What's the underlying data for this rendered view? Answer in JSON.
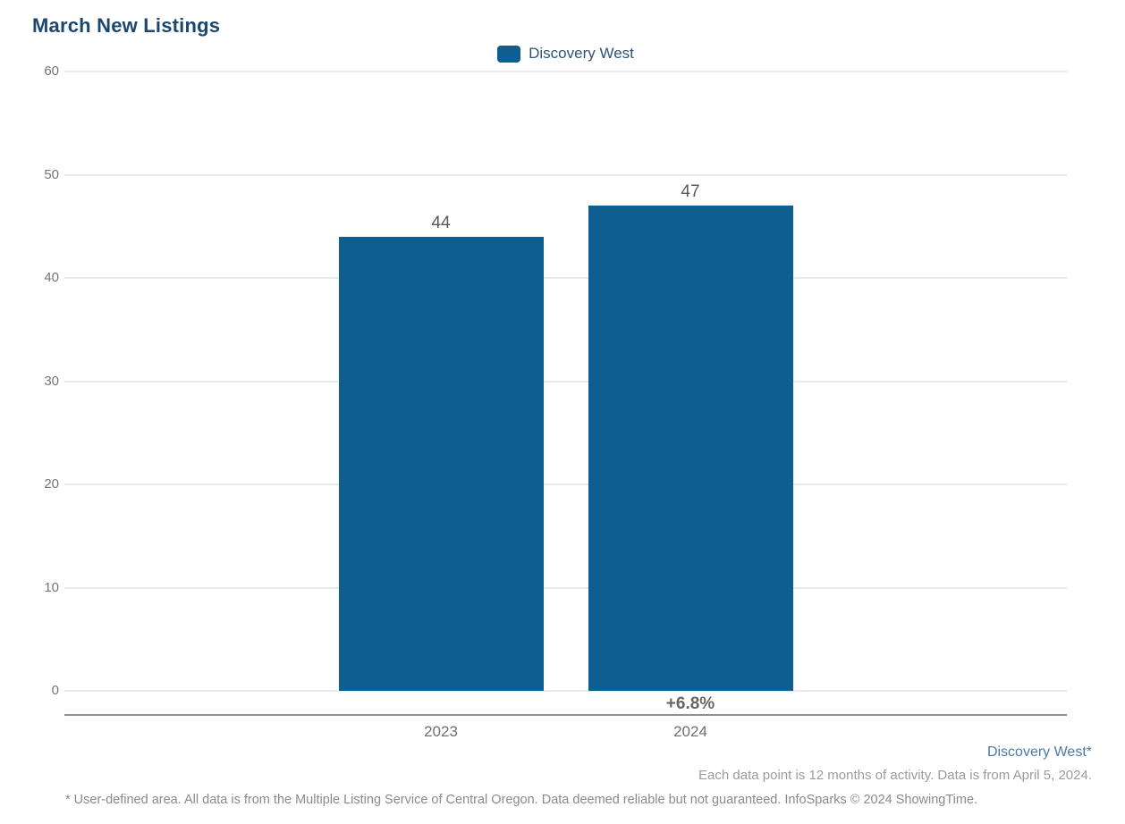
{
  "page": {
    "title": "March New Listings"
  },
  "legend": {
    "label": "Discovery West",
    "swatch_color": "#0F5E92"
  },
  "chart_data": {
    "type": "bar",
    "title": "March New Listings",
    "categories": [
      "2023",
      "2024"
    ],
    "series": [
      {
        "name": "Discovery West",
        "color": "#0F5E92",
        "values": [
          44,
          47
        ]
      }
    ],
    "value_labels": [
      "44",
      "47"
    ],
    "change_labels": [
      "",
      "+6.8%"
    ],
    "xlabel": "",
    "ylabel": "",
    "ylim": [
      0,
      60
    ],
    "yticks": [
      0,
      10,
      20,
      30,
      40,
      50,
      60
    ],
    "grid": "horizontal",
    "legend_position": "top-center"
  },
  "footer": {
    "area_label": "Discovery West*",
    "data_note": "Each data point is 12 months of activity. Data is from April 5, 2024.",
    "disclaimer": "* User-defined area. All data is from the Multiple Listing Service of Central Oregon. Data deemed reliable but not guaranteed. InfoSparks © 2024 ShowingTime."
  },
  "colors": {
    "bar": "#0F5E92",
    "title_text": "#1C4870",
    "legend_text": "#2D5379",
    "axis_tick_text": "#757575",
    "value_label_text": "#58595B",
    "change_label_text": "#666666",
    "axis_line": "#8F8F8F",
    "gridline": "#E9E9E9",
    "footer_area_text": "#4B79AB",
    "footer_note_text": "#9B9B9B",
    "disclaimer_text": "#8A8A8A"
  }
}
